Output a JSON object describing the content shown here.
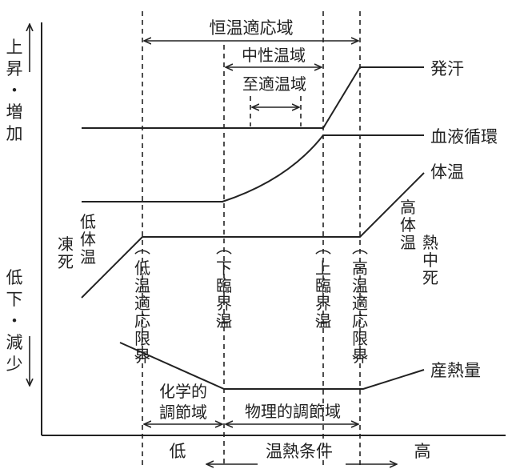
{
  "y_axis": {
    "up": "上昇・増加",
    "down": "低下・減少"
  },
  "x_axis": {
    "title": "温熱条件",
    "low": "低",
    "high": "高"
  },
  "ranges": {
    "homeothermic": "恒温適応域",
    "neutral": "中性温域",
    "optimal": "至適温域",
    "chemical": "化学的調節域",
    "physical": "物理的調節域"
  },
  "thresholds": {
    "low_adapt": "(低温適応限界)",
    "lower_critical": "(下臨界温)",
    "upper_critical": "(上臨界温)",
    "high_adapt": "(高温適応限界)"
  },
  "curves": {
    "sweating": "発汗",
    "blood_circulation": "血液循環",
    "body_temp": "体温",
    "heat_production": "産熱量"
  },
  "conditions": {
    "freeze_death": "凍死",
    "hypothermia": "低体温",
    "hyperthermia": "高体温",
    "heat_death": "熱中死"
  }
}
